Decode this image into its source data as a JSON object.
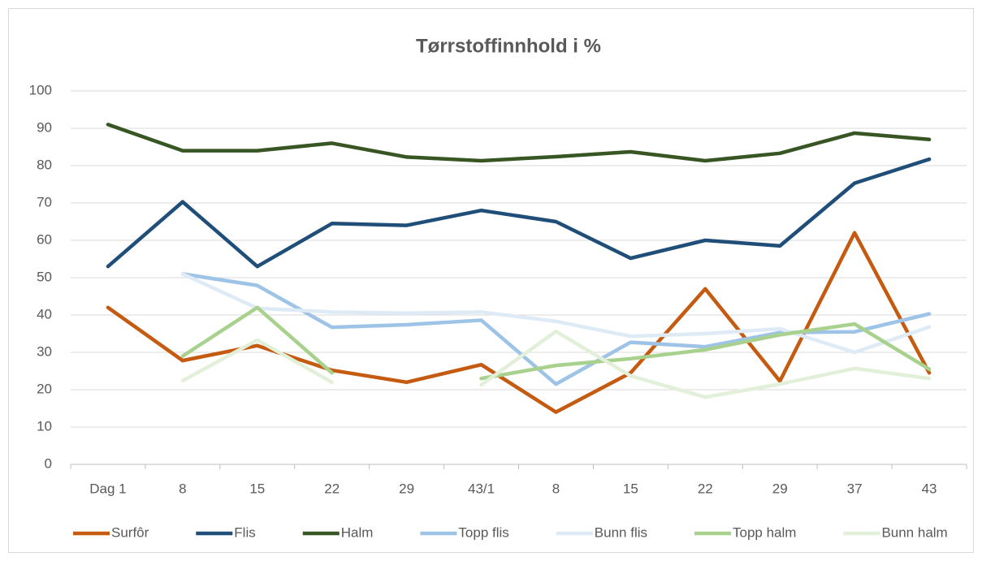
{
  "chart_data": {
    "type": "line",
    "title": "Tørrstoffinnhold i %",
    "categories": [
      "Dag 1",
      "8",
      "15",
      "22",
      "29",
      "43/1",
      "8",
      "15",
      "22",
      "29",
      "37",
      "43"
    ],
    "ylim": [
      0,
      100
    ],
    "yticks": [
      0,
      10,
      20,
      30,
      40,
      50,
      60,
      70,
      80,
      90,
      100
    ],
    "grid": true,
    "legend": "bottom",
    "series": [
      {
        "name": "Surfôr",
        "color": "#c55a11",
        "values": [
          42,
          27.8,
          31.8,
          25.2,
          22,
          26.7,
          14,
          24.5,
          47,
          22.3,
          62,
          24.5
        ]
      },
      {
        "name": "Flis",
        "color": "#1f4e79",
        "values": [
          53,
          70.3,
          53,
          64.5,
          64,
          68,
          65,
          55.2,
          60,
          58.5,
          75.3,
          81.7
        ]
      },
      {
        "name": "Halm",
        "color": "#375623",
        "values": [
          91,
          84,
          84,
          86,
          82.3,
          81.3,
          82.4,
          83.7,
          81.3,
          83.3,
          88.7,
          87
        ]
      },
      {
        "name": "Topp flis",
        "color": "#9dc3e6",
        "values": [
          null,
          51,
          47.9,
          36.7,
          37.4,
          38.6,
          21.5,
          32.7,
          31.5,
          35.3,
          35.5,
          40.3
        ]
      },
      {
        "name": "Bunn flis",
        "color": "#deebf7",
        "values": [
          null,
          51,
          41.8,
          40.8,
          40.5,
          40.8,
          38.3,
          34.3,
          35,
          36.3,
          30,
          36.8
        ]
      },
      {
        "name": "Topp halm",
        "color": "#a9d18e",
        "values": [
          null,
          29,
          42,
          24.5,
          null,
          23,
          26.5,
          28.3,
          30.7,
          34.7,
          37.6,
          25.5
        ]
      },
      {
        "name": "Bunn halm",
        "color": "#e2f0d9",
        "values": [
          null,
          22.4,
          33.3,
          22,
          null,
          21.3,
          35.6,
          23.7,
          18,
          21.5,
          25.7,
          23
        ]
      }
    ]
  }
}
